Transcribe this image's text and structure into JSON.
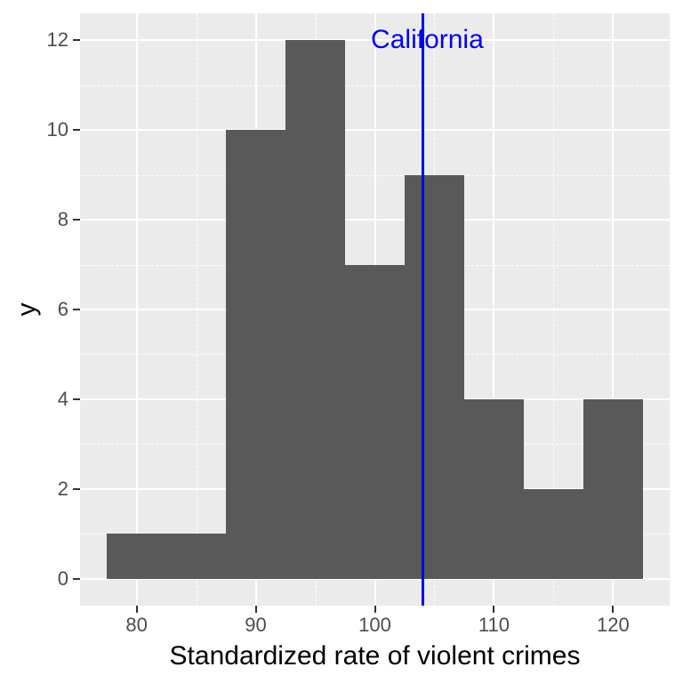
{
  "figure": {
    "background": "#FFFFFF"
  },
  "chart_data": {
    "type": "bar",
    "subtype": "histogram",
    "title": "",
    "xlabel": "Standardized rate of violent crimes",
    "ylabel": "y",
    "bin_width": 5,
    "bins": [
      {
        "start": 77.5,
        "end": 82.5,
        "count": 1
      },
      {
        "start": 82.5,
        "end": 87.5,
        "count": 1
      },
      {
        "start": 87.5,
        "end": 92.5,
        "count": 10
      },
      {
        "start": 92.5,
        "end": 97.5,
        "count": 12
      },
      {
        "start": 97.5,
        "end": 102.5,
        "count": 7
      },
      {
        "start": 102.5,
        "end": 107.5,
        "count": 9
      },
      {
        "start": 107.5,
        "end": 112.5,
        "count": 4
      },
      {
        "start": 112.5,
        "end": 117.5,
        "count": 2
      },
      {
        "start": 117.5,
        "end": 122.5,
        "count": 4
      }
    ],
    "x_ticks": [
      80,
      90,
      100,
      110,
      120
    ],
    "y_ticks": [
      0,
      2,
      4,
      6,
      8,
      10,
      12
    ],
    "x_minor_ticks": [
      85,
      95,
      105,
      115
    ],
    "y_minor_ticks": [
      1,
      3,
      5,
      7,
      9,
      11
    ],
    "xlim": [
      75.25,
      124.75
    ],
    "ylim": [
      -0.6,
      12.6
    ],
    "grid": true,
    "legend": "none",
    "vline": {
      "x": 104,
      "label": "California",
      "label_x": 104.4,
      "label_y": 12.0,
      "color": "#0000FF"
    },
    "style": {
      "bar_fill": "#595959",
      "panel_background": "#EBEBEB",
      "grid_major_color": "#FFFFFF",
      "grid_minor_color": "#FFFFFF",
      "axis_text_color": "#4D4D4D",
      "axis_title_color": "#000000",
      "tick_mark_color": "#333333"
    }
  }
}
